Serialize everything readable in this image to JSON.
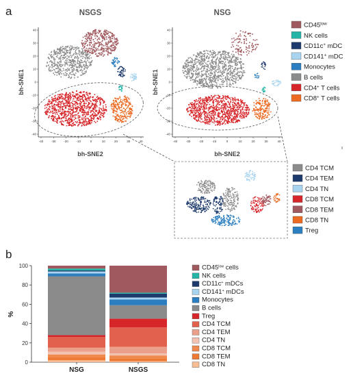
{
  "panel_labels": {
    "a": "a",
    "b": "b"
  },
  "tsne": {
    "titles": {
      "nsgs": "NSGS",
      "nsg": "NSG"
    },
    "xlabel": "bh-SNE2",
    "ylabel": "bh-SNE1",
    "xticks": [
      "-40",
      "-30",
      "-20",
      "-10",
      "0",
      "10",
      "20",
      "30",
      "40"
    ],
    "yticks": [
      "40",
      "30",
      "20",
      "10",
      "0",
      "-10",
      "-20",
      "-30",
      "-40"
    ],
    "legend_main": [
      {
        "label": "CD45",
        "sup": "low",
        "color": "#a05a5f"
      },
      {
        "label": "NK cells",
        "sup": "",
        "color": "#25b5a6"
      },
      {
        "label": "CD11c",
        "sup": "+",
        "after": " mDC",
        "color": "#1c3a6b"
      },
      {
        "label": "CD141",
        "sup": "+",
        "after": " mDC",
        "color": "#a9d4ef"
      },
      {
        "label": "Monocytes",
        "sup": "",
        "color": "#2b7fc0"
      },
      {
        "label": "B cells",
        "sup": "",
        "color": "#8b8b8b"
      },
      {
        "label": "CD4",
        "sup": "+",
        "after": " T cells",
        "color": "#d7262a"
      },
      {
        "label": "CD8",
        "sup": "+",
        "after": " T cells",
        "color": "#ec6a22"
      }
    ],
    "legend_zoom": [
      {
        "label": "CD4 TCM",
        "color": "#8b8b8b"
      },
      {
        "label": "CD4 TEM",
        "color": "#1c3a6b"
      },
      {
        "label": "CD4 TN",
        "color": "#a9d4ef"
      },
      {
        "label": "CD8 TCM",
        "color": "#d7262a"
      },
      {
        "label": "CD8 TEM",
        "color": "#a05a5f"
      },
      {
        "label": "CD8 TN",
        "color": "#ec6a22"
      },
      {
        "label": "Treg",
        "color": "#2b7fc0"
      }
    ]
  },
  "chart_data": {
    "type": "bar",
    "stacked": true,
    "categories": [
      "NSG",
      "NSGS"
    ],
    "ylabel": "%",
    "ylim": [
      0,
      100
    ],
    "yticks": [
      0,
      20,
      40,
      60,
      80,
      100
    ],
    "series": [
      {
        "name": "CD8 TN",
        "color": "#f7bd92",
        "values": [
          2,
          1
        ]
      },
      {
        "name": "CD8 TEM",
        "color": "#ec7a35",
        "values": [
          3,
          3
        ]
      },
      {
        "name": "CD8 TCM",
        "color": "#f0894e",
        "values": [
          3,
          3
        ]
      },
      {
        "name": "CD4 TN",
        "color": "#f4c2b2",
        "values": [
          3,
          2
        ]
      },
      {
        "name": "CD4 TEM",
        "color": "#eba08c",
        "values": [
          4,
          7
        ]
      },
      {
        "name": "CD4 TCM",
        "color": "#e2614c",
        "values": [
          11,
          20
        ]
      },
      {
        "name": "Treg",
        "color": "#d7262a",
        "values": [
          2,
          9
        ]
      },
      {
        "name": "B cells",
        "color": "#8b8b8b",
        "values": [
          61,
          14
        ]
      },
      {
        "name": "Monocytes",
        "color": "#2b7fc0",
        "values": [
          3,
          6
        ]
      },
      {
        "name": "CD141⁺ mDCs",
        "color": "#a9d4ef",
        "values": [
          2,
          2
        ]
      },
      {
        "name": "CD11c⁺ mDCs",
        "color": "#1c3a6b",
        "values": [
          1,
          4
        ]
      },
      {
        "name": "NK cells",
        "color": "#25b5a6",
        "values": [
          2,
          1
        ]
      },
      {
        "name": "CD45ˡᵒʷ cells",
        "color": "#a05a5f",
        "values": [
          3,
          28
        ]
      }
    ],
    "legend": [
      {
        "label": "CD45",
        "sup": "low",
        "after": " cells",
        "color": "#a05a5f"
      },
      {
        "label": "NK cells",
        "sup": "",
        "color": "#25b5a6"
      },
      {
        "label": "CD11c",
        "sup": "+",
        "after": " mDCs",
        "color": "#1c3a6b"
      },
      {
        "label": "CD141",
        "sup": "+",
        "after": " mDCs",
        "color": "#a9d4ef"
      },
      {
        "label": "Monocytes",
        "sup": "",
        "color": "#2b7fc0"
      },
      {
        "label": "B cells",
        "sup": "",
        "color": "#8b8b8b"
      },
      {
        "label": "Treg",
        "sup": "",
        "color": "#d7262a"
      },
      {
        "label": "CD4 TCM",
        "sup": "",
        "color": "#e2614c"
      },
      {
        "label": "CD4 TEM",
        "sup": "",
        "color": "#eba08c"
      },
      {
        "label": "CD4 TN",
        "sup": "",
        "color": "#f4c2b2"
      },
      {
        "label": "CD8 TCM",
        "sup": "",
        "color": "#f0894e"
      },
      {
        "label": "CD8 TEM",
        "sup": "",
        "color": "#ec7a35"
      },
      {
        "label": "CD8 TN",
        "sup": "",
        "color": "#f7bd92"
      }
    ]
  }
}
